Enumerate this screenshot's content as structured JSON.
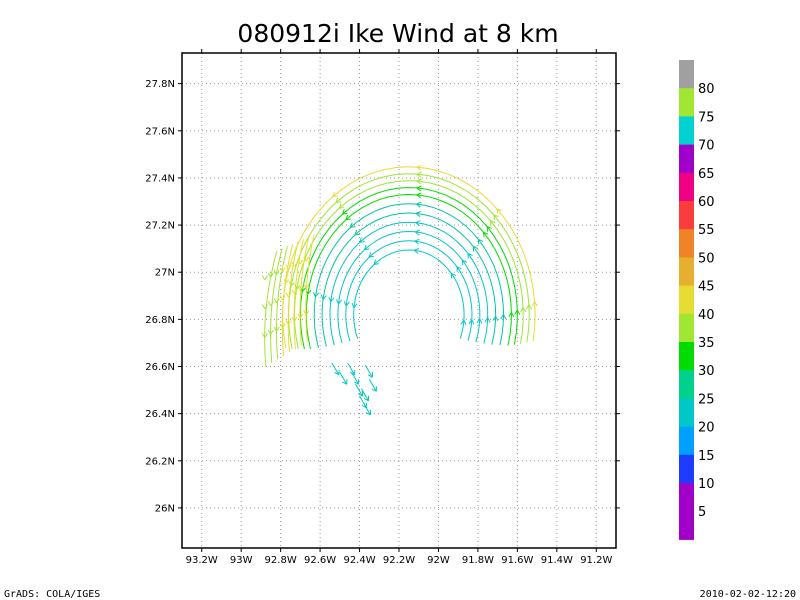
{
  "title": "080912i Ike Wind at 8 km",
  "footer_left": "GrADS: COLA/IGES",
  "footer_right": "2010-02-02-12:20",
  "map": {
    "lon_range": [
      -93.3,
      -91.1
    ],
    "lat_range": [
      25.83,
      27.93
    ],
    "lat_ticks": [
      {
        "value": 27.8,
        "label": "27.8N"
      },
      {
        "value": 27.6,
        "label": "27.6N"
      },
      {
        "value": 27.4,
        "label": "27.4N"
      },
      {
        "value": 27.2,
        "label": "27.2N"
      },
      {
        "value": 27.0,
        "label": "27N"
      },
      {
        "value": 26.8,
        "label": "26.8N"
      },
      {
        "value": 26.6,
        "label": "26.6N"
      },
      {
        "value": 26.4,
        "label": "26.4N"
      },
      {
        "value": 26.2,
        "label": "26.2N"
      },
      {
        "value": 26.0,
        "label": "26N"
      }
    ],
    "lon_ticks": [
      {
        "value": -93.2,
        "label": "93.2W"
      },
      {
        "value": -93.0,
        "label": "93W"
      },
      {
        "value": -92.8,
        "label": "92.8W"
      },
      {
        "value": -92.6,
        "label": "92.6W"
      },
      {
        "value": -92.4,
        "label": "92.4W"
      },
      {
        "value": -92.2,
        "label": "92.2W"
      },
      {
        "value": -92.0,
        "label": "92W"
      },
      {
        "value": -91.8,
        "label": "91.8W"
      },
      {
        "value": -91.6,
        "label": "91.6W"
      },
      {
        "value": -91.4,
        "label": "91.4W"
      },
      {
        "value": -91.2,
        "label": "91.2W"
      }
    ],
    "grid": true,
    "center": {
      "lon": -92.15,
      "lat": 26.82
    },
    "east_arcs": [
      {
        "radius": 0.28,
        "color": "#00c8c8"
      },
      {
        "radius": 0.32,
        "color": "#00c8c8"
      },
      {
        "radius": 0.36,
        "color": "#00c8c8"
      },
      {
        "radius": 0.4,
        "color": "#00c8c8"
      },
      {
        "radius": 0.44,
        "color": "#00c8a0"
      },
      {
        "radius": 0.48,
        "color": "#00c8a0"
      },
      {
        "radius": 0.52,
        "color": "#00dc00"
      },
      {
        "radius": 0.55,
        "color": "#00dc00"
      },
      {
        "radius": 0.58,
        "color": "#a0e632"
      },
      {
        "radius": 0.61,
        "color": "#a0e632"
      },
      {
        "radius": 0.64,
        "color": "#e6dc32"
      }
    ],
    "west_arcs": [
      {
        "lon": -92.87,
        "color": "#a0e632"
      },
      {
        "lon": -92.84,
        "color": "#a0e632"
      },
      {
        "lon": -92.81,
        "color": "#a0e632"
      },
      {
        "lon": -92.78,
        "color": "#e6dc32"
      },
      {
        "lon": -92.75,
        "color": "#e6dc32"
      },
      {
        "lon": -92.72,
        "color": "#e6dc32"
      },
      {
        "lon": -92.69,
        "color": "#e6dc32"
      },
      {
        "lon": -92.66,
        "color": "#e6dc32"
      }
    ],
    "central_vectors": [
      {
        "lon": -92.44,
        "lat": 26.59,
        "color": "#00c8c8"
      },
      {
        "lon": -92.42,
        "lat": 26.55,
        "color": "#00c8c8"
      },
      {
        "lon": -92.4,
        "lat": 26.5,
        "color": "#00c8c8"
      },
      {
        "lon": -92.38,
        "lat": 26.45,
        "color": "#00c8c8"
      },
      {
        "lon": -92.36,
        "lat": 26.42,
        "color": "#00c8c8"
      },
      {
        "lon": -92.35,
        "lat": 26.58,
        "color": "#00c8c8"
      },
      {
        "lon": -92.33,
        "lat": 26.52,
        "color": "#00c8c8"
      },
      {
        "lon": -92.37,
        "lat": 26.48,
        "color": "#00c8a0"
      },
      {
        "lon": -92.48,
        "lat": 26.55,
        "color": "#00c8c8"
      },
      {
        "lon": -92.52,
        "lat": 26.59,
        "color": "#00c8c8"
      }
    ]
  },
  "colorbar": [
    {
      "label": "",
      "color": "#a0a0a0"
    },
    {
      "label": "80",
      "color": "#a0e632"
    },
    {
      "label": "75",
      "color": "#00d2d2"
    },
    {
      "label": "70",
      "color": "#a000c8"
    },
    {
      "label": "65",
      "color": "#f00082"
    },
    {
      "label": "60",
      "color": "#fa3c3c"
    },
    {
      "label": "55",
      "color": "#f08228"
    },
    {
      "label": "50",
      "color": "#e6af2d"
    },
    {
      "label": "45",
      "color": "#e6dc32"
    },
    {
      "label": "40",
      "color": "#a0e632"
    },
    {
      "label": "35",
      "color": "#00dc00"
    },
    {
      "label": "30",
      "color": "#00d28c"
    },
    {
      "label": "25",
      "color": "#00c8c8"
    },
    {
      "label": "20",
      "color": "#00a0ff"
    },
    {
      "label": "15",
      "color": "#1e3cff"
    },
    {
      "label": "10",
      "color": "#a000c8"
    },
    {
      "label": "5",
      "color": "#a000c8"
    }
  ]
}
